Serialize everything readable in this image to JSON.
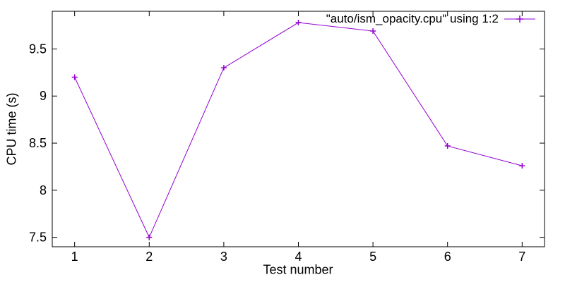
{
  "chart_data": {
    "type": "line",
    "title": "",
    "xlabel": "Test number",
    "ylabel": "CPU time (s)",
    "x": [
      1,
      2,
      3,
      4,
      5,
      6,
      7
    ],
    "x_ticks": [
      1,
      2,
      3,
      4,
      5,
      6,
      7
    ],
    "y_ticks": [
      7.5,
      8,
      8.5,
      9,
      9.5
    ],
    "xlim": [
      0.7,
      7.3
    ],
    "ylim": [
      7.4,
      9.9
    ],
    "grid": false,
    "legend_position": "top-right-inside",
    "marker": "plus",
    "series": [
      {
        "name": "\"auto/ism_opacity.cpu\" using 1:2",
        "values": [
          9.2,
          7.5,
          9.3,
          9.78,
          9.69,
          8.47,
          8.26
        ],
        "color": "#9400d3"
      }
    ]
  },
  "colors": {
    "line": "#9400d3",
    "border": "#000000",
    "text": "#000000",
    "background": "#ffffff"
  }
}
